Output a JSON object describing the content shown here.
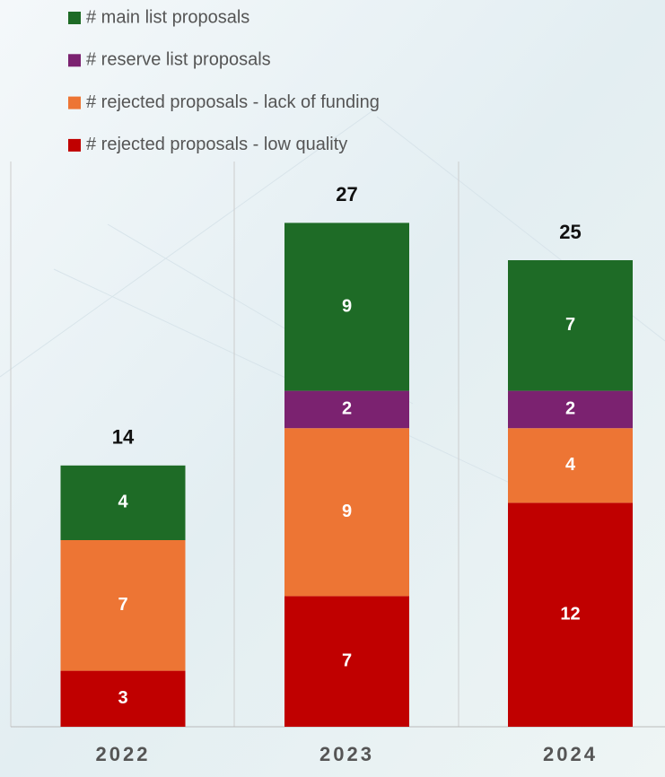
{
  "chart_data": {
    "type": "stacked-bar",
    "categories": [
      "2022",
      "2023",
      "2024"
    ],
    "series": [
      {
        "name": "# main list proposals",
        "color": "#1e6b26",
        "values": [
          4,
          9,
          7
        ]
      },
      {
        "name": "# reserve list proposals",
        "color": "#7b2270",
        "values": [
          null,
          2,
          2
        ]
      },
      {
        "name": "# rejected proposals - lack of funding",
        "color": "#ed7534",
        "values": [
          7,
          9,
          4
        ]
      },
      {
        "name": "# rejected proposals - low quality",
        "color": "#c00000",
        "values": [
          3,
          7,
          12
        ]
      }
    ],
    "totals": [
      14,
      27,
      25
    ]
  }
}
